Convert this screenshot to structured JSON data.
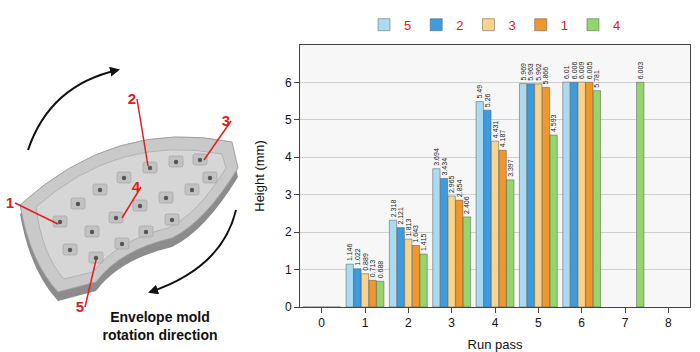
{
  "chart_data": {
    "type": "bar",
    "x_label": "Run pass",
    "y_label": "Height (mm)",
    "x": [
      0,
      1,
      2,
      3,
      4,
      5,
      6,
      7,
      8
    ],
    "xlim": [
      -0.5,
      8.5
    ],
    "xticks": [
      0,
      1,
      2,
      3,
      4,
      5,
      6,
      7,
      8
    ],
    "ylim": [
      0,
      7
    ],
    "yticks": [
      0,
      1,
      2,
      3,
      4,
      5,
      6
    ],
    "grid": true,
    "legend": "top",
    "data_labels": true,
    "series": [
      {
        "name": "5",
        "color": "#a9dcf2",
        "values": [
          0,
          1.146,
          2.318,
          3.694,
          5.49,
          5.969,
          6.01,
          null,
          null
        ],
        "value_labels": [
          null,
          "1.146",
          "2.318",
          "3.694",
          "5.49",
          "5.969",
          "6.01",
          null,
          null
        ]
      },
      {
        "name": "2",
        "color": "#3d9be0",
        "values": [
          0,
          1.022,
          2.121,
          3.434,
          5.26,
          5.963,
          6.006,
          null,
          null
        ],
        "value_labels": [
          null,
          "1.022",
          "2.121",
          "3.434",
          "5.26",
          "5.963",
          "6.006",
          null,
          null
        ]
      },
      {
        "name": "3",
        "color": "#f9d48c",
        "values": [
          0,
          0.889,
          1.813,
          2.965,
          4.431,
          5.962,
          6.009,
          null,
          null
        ],
        "value_labels": [
          null,
          "0.889",
          "1.813",
          "2.965",
          "4.431",
          "5.962",
          "6.009",
          null,
          null
        ]
      },
      {
        "name": "1",
        "color": "#f0962a",
        "values": [
          0,
          0.713,
          1.643,
          2.854,
          4.187,
          5.866,
          6.005,
          null,
          null
        ],
        "value_labels": [
          null,
          "0.713",
          "1.643",
          "2.854",
          "4.187",
          "5.866",
          "6.005",
          null,
          null
        ]
      },
      {
        "name": "4",
        "color": "#94d66b",
        "values": [
          0,
          0.688,
          1.415,
          2.406,
          3.397,
          4.593,
          5.781,
          6.003,
          null
        ],
        "value_labels": [
          null,
          "0.688",
          "1.415",
          "2.406",
          "3.397",
          "4.593",
          "5.781",
          "6.003",
          null
        ]
      }
    ]
  },
  "diagram": {
    "point_labels": [
      "1",
      "2",
      "3",
      "4",
      "5"
    ],
    "caption": [
      "Envelope mold",
      "rotation direction"
    ]
  }
}
